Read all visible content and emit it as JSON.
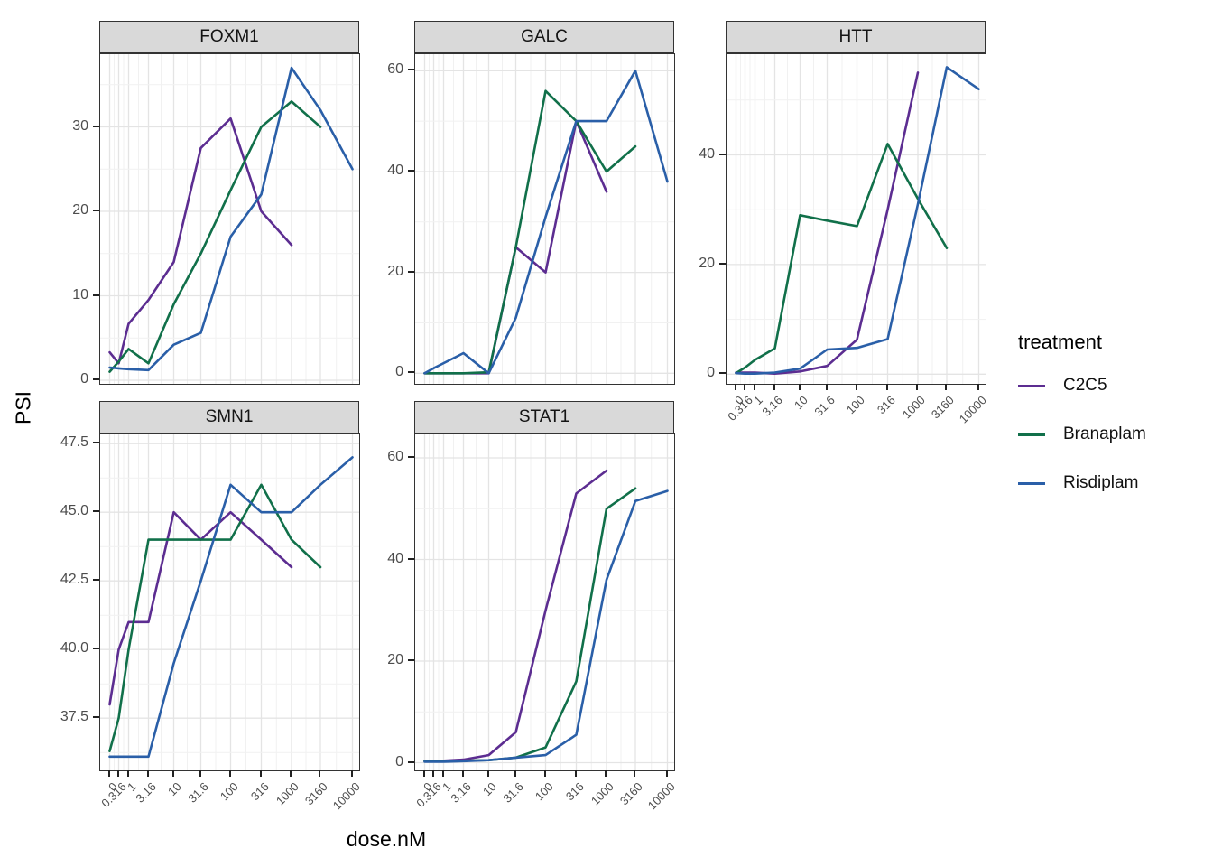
{
  "figure": {
    "y_axis_title": "PSI",
    "x_axis_title": "dose.nM",
    "doses": [
      0,
      0.316,
      1,
      3.16,
      10,
      31.6,
      100,
      316,
      1000,
      3160,
      10000
    ],
    "x_tick_labels": [
      "0",
      "0.316",
      "1",
      "3.16",
      "10",
      "31.6",
      "100",
      "316",
      "1000",
      "3160",
      "10000"
    ],
    "colors": {
      "C2C5": "#5c2d91",
      "Branaplam": "#11704a",
      "Risdiplam": "#2a5fa8"
    },
    "legend": {
      "title": "treatment",
      "items": [
        "C2C5",
        "Branaplam",
        "Risdiplam"
      ]
    }
  },
  "chart_data": [
    {
      "type": "line",
      "title": "FOXM1",
      "xlabel": "dose.nM",
      "ylabel": "PSI",
      "x_scale": "pseudo-log",
      "y_ticks": [
        0,
        10,
        20,
        30
      ],
      "y_tick_labels": [
        "0",
        "10",
        "20",
        "30"
      ],
      "ylim": [
        -1.5,
        38.6
      ],
      "series": [
        {
          "name": "C2C5",
          "doses": [
            0,
            0.316,
            1,
            3.16,
            10,
            31.6,
            100,
            316,
            1000
          ],
          "values": [
            3.3,
            2.0,
            6.7,
            9.5,
            14.0,
            27.5,
            31.0,
            20.0,
            16.0
          ]
        },
        {
          "name": "Branaplam",
          "doses": [
            0,
            0.316,
            1,
            3.16,
            10,
            31.6,
            100,
            316,
            1000,
            3160
          ],
          "values": [
            1.0,
            2.2,
            3.7,
            2.0,
            9.0,
            15.0,
            22.5,
            30.0,
            33.0,
            30.0
          ]
        },
        {
          "name": "Risdiplam",
          "doses": [
            0,
            0.316,
            1,
            3.16,
            10,
            31.6,
            100,
            316,
            1000,
            3160,
            10000
          ],
          "values": [
            1.5,
            1.4,
            1.3,
            1.2,
            4.2,
            5.6,
            17.0,
            22.0,
            37.0,
            32.0,
            25.0
          ]
        }
      ]
    },
    {
      "type": "line",
      "title": "GALC",
      "xlabel": "dose.nM",
      "ylabel": "PSI",
      "x_scale": "pseudo-log",
      "y_ticks": [
        0,
        20,
        40,
        60
      ],
      "y_tick_labels": [
        "0",
        "20",
        "40",
        "60"
      ],
      "ylim": [
        -2,
        63
      ],
      "series": [
        {
          "name": "C2C5",
          "doses": [
            0,
            0.316,
            1,
            3.16,
            10,
            31.6,
            100,
            316,
            1000
          ],
          "values": [
            0,
            0,
            0,
            0,
            0,
            25,
            20,
            50,
            36
          ]
        },
        {
          "name": "Branaplam",
          "doses": [
            0,
            0.316,
            1,
            3.16,
            10,
            31.6,
            100,
            316,
            1000,
            3160
          ],
          "values": [
            0,
            0,
            0,
            0,
            0.2,
            25,
            56,
            50,
            40,
            45
          ]
        },
        {
          "name": "Risdiplam",
          "doses": [
            0,
            0.316,
            1,
            3.16,
            10,
            31.6,
            100,
            316,
            1000,
            3160,
            10000
          ],
          "values": [
            0,
            1,
            2,
            4,
            0,
            11,
            31,
            50,
            50,
            60,
            38
          ]
        }
      ]
    },
    {
      "type": "line",
      "title": "HTT",
      "xlabel": "dose.nM",
      "ylabel": "PSI",
      "x_scale": "pseudo-log",
      "y_ticks": [
        0,
        20,
        40
      ],
      "y_tick_labels": [
        "0",
        "20",
        "40"
      ],
      "ylim": [
        -2,
        58
      ],
      "series": [
        {
          "name": "C2C5",
          "doses": [
            0,
            0.316,
            1,
            3.16,
            10,
            31.6,
            100,
            316,
            1000
          ],
          "values": [
            0.3,
            0.3,
            0.3,
            0.1,
            0.5,
            1.5,
            6.3,
            30.0,
            55.0
          ]
        },
        {
          "name": "Branaplam",
          "doses": [
            0,
            0.316,
            1,
            3.16,
            10,
            31.6,
            100,
            316,
            1000,
            3160
          ],
          "values": [
            0.2,
            1.2,
            2.6,
            4.7,
            29.0,
            28.0,
            27.0,
            42.0,
            32.0,
            23.0
          ]
        },
        {
          "name": "Risdiplam",
          "doses": [
            0,
            0.316,
            1,
            3.16,
            10,
            31.6,
            100,
            316,
            1000,
            3160,
            10000
          ],
          "values": [
            0.2,
            0.1,
            0.1,
            0.3,
            1.0,
            4.5,
            4.8,
            6.4,
            31.0,
            56.0,
            52.0
          ]
        }
      ]
    },
    {
      "type": "line",
      "title": "SMN1",
      "xlabel": "dose.nM",
      "ylabel": "PSI",
      "x_scale": "pseudo-log",
      "y_ticks": [
        37.5,
        40.0,
        42.5,
        45.0,
        47.5
      ],
      "y_tick_labels": [
        "37.5",
        "40.0",
        "42.5",
        "45.0",
        "47.5"
      ],
      "ylim": [
        35.6,
        47.9
      ],
      "series": [
        {
          "name": "C2C5",
          "doses": [
            0,
            0.316,
            1,
            3.16,
            10,
            31.6,
            100,
            316,
            1000
          ],
          "values": [
            38.0,
            40.0,
            41.0,
            41.0,
            45.0,
            44.0,
            45.0,
            44.0,
            43.0
          ]
        },
        {
          "name": "Branaplam",
          "doses": [
            0,
            0.316,
            1,
            3.16,
            10,
            31.6,
            100,
            316,
            1000,
            3160
          ],
          "values": [
            36.3,
            37.5,
            40.0,
            44.0,
            44.0,
            44.0,
            44.0,
            46.0,
            44.0,
            43.0
          ]
        },
        {
          "name": "Risdiplam",
          "doses": [
            0,
            0.316,
            1,
            3.16,
            10,
            31.6,
            100,
            316,
            1000,
            3160,
            10000
          ],
          "values": [
            36.1,
            36.1,
            36.1,
            36.1,
            39.5,
            42.5,
            46.0,
            45.0,
            45.0,
            46.0,
            47.0
          ]
        }
      ]
    },
    {
      "type": "line",
      "title": "STAT1",
      "xlabel": "dose.nM",
      "ylabel": "PSI",
      "x_scale": "pseudo-log",
      "y_ticks": [
        0,
        20,
        40,
        60
      ],
      "y_tick_labels": [
        "0",
        "20",
        "40",
        "60"
      ],
      "ylim": [
        -2,
        64
      ],
      "series": [
        {
          "name": "C2C5",
          "doses": [
            0,
            0.316,
            1,
            3.16,
            10,
            31.6,
            100,
            316,
            1000
          ],
          "values": [
            0.3,
            0.3,
            0.4,
            0.6,
            1.5,
            6.0,
            30.0,
            53.0,
            57.5
          ]
        },
        {
          "name": "Branaplam",
          "doses": [
            0,
            0.316,
            1,
            3.16,
            10,
            31.6,
            100,
            316,
            1000,
            3160
          ],
          "values": [
            0.3,
            0.3,
            0.3,
            0.4,
            0.5,
            1.0,
            3.0,
            16.0,
            50.0,
            54.0
          ]
        },
        {
          "name": "Risdiplam",
          "doses": [
            0,
            0.316,
            1,
            3.16,
            10,
            31.6,
            100,
            316,
            1000,
            3160,
            10000
          ],
          "values": [
            0.2,
            0.2,
            0.2,
            0.3,
            0.5,
            1.0,
            1.5,
            5.5,
            36.0,
            51.5,
            53.5
          ]
        }
      ]
    }
  ]
}
